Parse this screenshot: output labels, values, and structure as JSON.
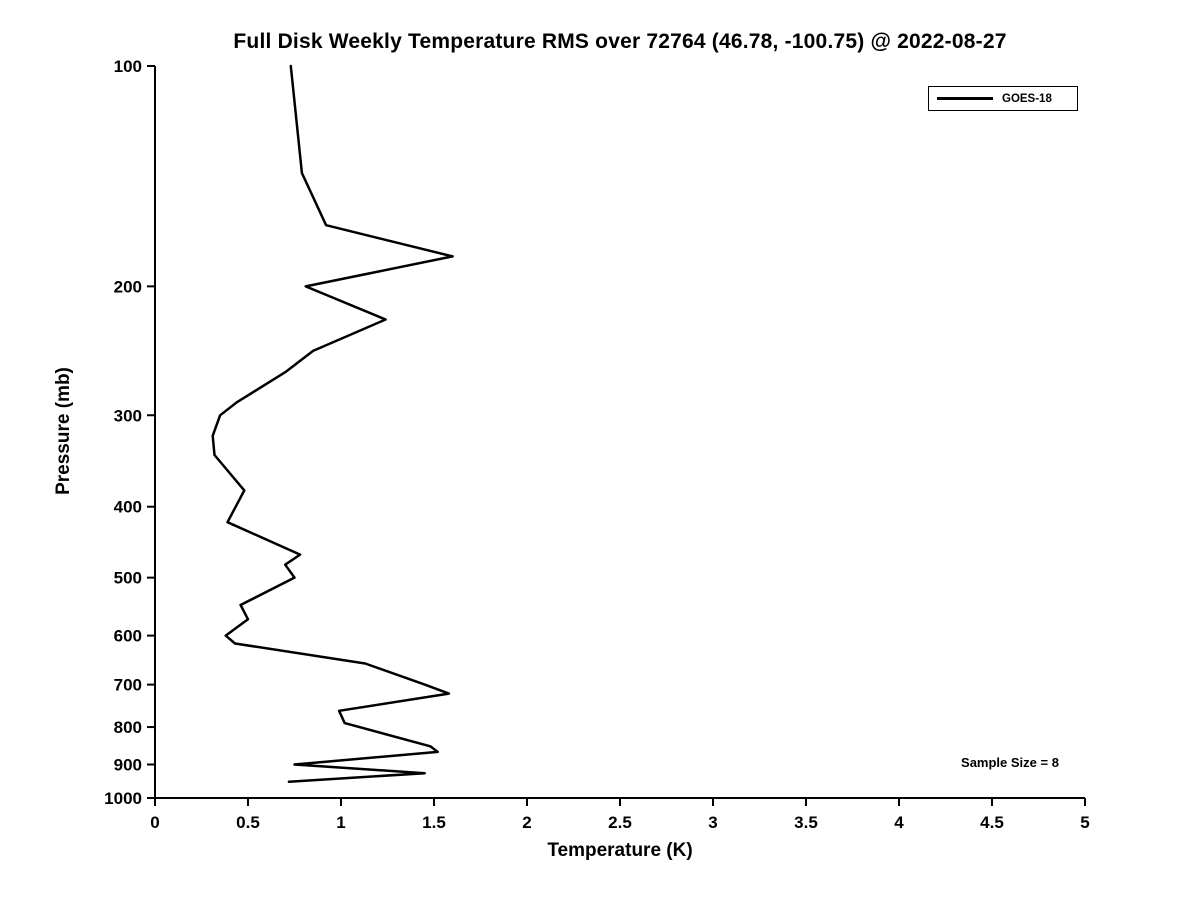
{
  "title": "Full Disk Weekly Temperature RMS over 72764 (46.78, -100.75) @ 2022-08-27",
  "legend": {
    "label": "GOES-18"
  },
  "annotation": "Sample Size = 8",
  "colors": {
    "line": "#000000",
    "axis": "#000000",
    "text": "#000000",
    "background": "#ffffff"
  },
  "chart_data": {
    "type": "line",
    "title": "Full Disk Weekly Temperature RMS over 72764 (46.78, -100.75) @ 2022-08-27",
    "xlabel": "Temperature (K)",
    "ylabel": "Pressure (mb)",
    "xlim": [
      0,
      5
    ],
    "ylim": [
      100,
      1000
    ],
    "yscale": "log",
    "y_inverted": true,
    "grid": false,
    "legend_position": "upper right",
    "xtick_labels": [
      "0",
      "0.5",
      "1",
      "1.5",
      "2",
      "2.5",
      "3",
      "3.5",
      "4",
      "4.5",
      "5"
    ],
    "xticks": [
      0,
      0.5,
      1,
      1.5,
      2,
      2.5,
      3,
      3.5,
      4,
      4.5,
      5
    ],
    "ytick_labels": [
      "100",
      "200",
      "300",
      "400",
      "500",
      "600",
      "700",
      "800",
      "900",
      "1000"
    ],
    "yticks": [
      100,
      200,
      300,
      400,
      500,
      600,
      700,
      800,
      900,
      1000
    ],
    "series": [
      {
        "name": "GOES-18",
        "pressure_mb": [
          100,
          140,
          165,
          182,
          200,
          222,
          245,
          262,
          288,
          300,
          320,
          340,
          380,
          420,
          465,
          480,
          500,
          545,
          570,
          600,
          615,
          655,
          700,
          720,
          760,
          790,
          850,
          865,
          900,
          925,
          950
        ],
        "temperature_K": [
          0.73,
          0.79,
          0.92,
          1.6,
          0.81,
          1.24,
          0.85,
          0.7,
          0.44,
          0.35,
          0.31,
          0.32,
          0.48,
          0.39,
          0.78,
          0.7,
          0.75,
          0.46,
          0.5,
          0.38,
          0.43,
          1.13,
          1.45,
          1.58,
          0.99,
          1.02,
          1.48,
          1.52,
          0.75,
          1.45,
          0.72
        ]
      }
    ]
  }
}
